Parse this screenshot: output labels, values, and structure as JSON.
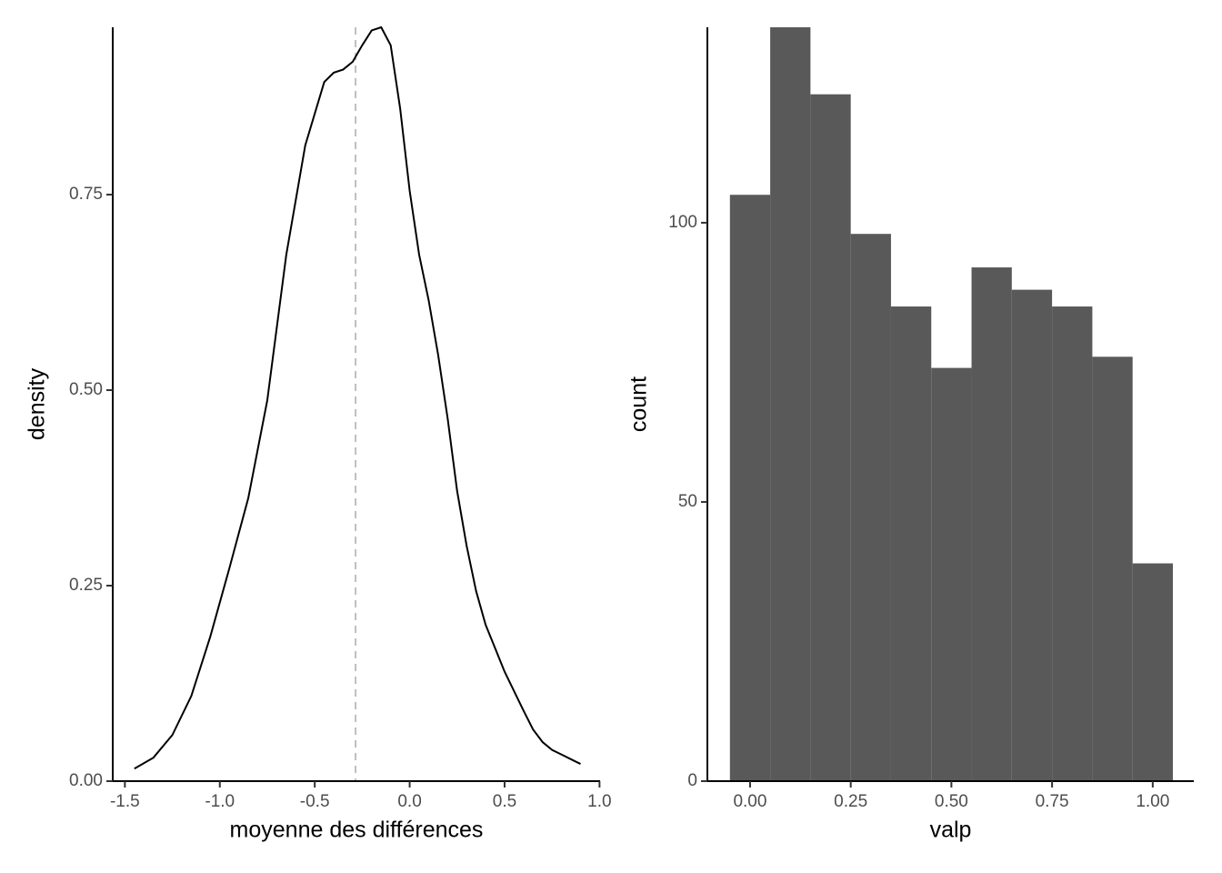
{
  "chart_data": [
    {
      "type": "line",
      "x_label": "moyenne des différences",
      "y_label": "density",
      "color": "#000000",
      "x": [
        -1.45,
        -1.35,
        -1.25,
        -1.15,
        -1.05,
        -0.95,
        -0.85,
        -0.75,
        -0.65,
        -0.55,
        -0.45,
        -0.4,
        -0.35,
        -0.3,
        -0.25,
        -0.2,
        -0.15,
        -0.1,
        -0.05,
        0.0,
        0.05,
        0.1,
        0.15,
        0.2,
        0.25,
        0.3,
        0.35,
        0.4,
        0.45,
        0.5,
        0.55,
        0.6,
        0.65,
        0.7,
        0.75,
        0.8,
        0.85,
        0.9
      ],
      "values": [
        0.016,
        0.03,
        0.059,
        0.109,
        0.185,
        0.272,
        0.362,
        0.487,
        0.673,
        0.813,
        0.894,
        0.906,
        0.91,
        0.92,
        0.941,
        0.96,
        0.964,
        0.941,
        0.86,
        0.755,
        0.673,
        0.615,
        0.545,
        0.464,
        0.371,
        0.301,
        0.243,
        0.2,
        0.17,
        0.14,
        0.115,
        0.09,
        0.066,
        0.05,
        0.04,
        0.034,
        0.028,
        0.022
      ],
      "vline": -0.285,
      "vline_color": "#bebebe",
      "xlim": [
        -1.564,
        1.003
      ],
      "ylim": [
        0,
        0.964
      ],
      "xticks": [
        -1.5,
        {
          "value": -1.0,
          "label": "-1.0"
        },
        -0.5,
        {
          "value": 0.0,
          "label": "0.0"
        },
        0.5,
        {
          "value": 1.0,
          "label": "1.0"
        }
      ],
      "yticks": [
        {
          "value": 0,
          "label": "0.00"
        },
        {
          "value": 0.25,
          "label": "0.25"
        },
        {
          "value": 0.5,
          "label": "0.50"
        },
        {
          "value": 0.75,
          "label": "0.75"
        }
      ]
    },
    {
      "type": "histogram",
      "x_label": "valp",
      "y_label": "count",
      "color": "#595959",
      "bins": [
        -0.05,
        0.05,
        0.15,
        0.25,
        0.35,
        0.45,
        0.55,
        0.65,
        0.75,
        0.85,
        0.95,
        1.05
      ],
      "values": [
        105,
        135,
        123,
        98,
        85,
        74,
        92,
        88,
        85,
        76,
        39
      ],
      "xlim": [
        -0.106,
        1.102
      ],
      "ylim": [
        0,
        135
      ],
      "xticks": [
        {
          "value": 0,
          "label": "0.00"
        },
        0.25,
        {
          "value": 0.5,
          "label": "0.50"
        },
        0.75,
        {
          "value": 1,
          "label": "1.00"
        }
      ],
      "yticks": [
        0,
        50,
        100
      ]
    }
  ]
}
